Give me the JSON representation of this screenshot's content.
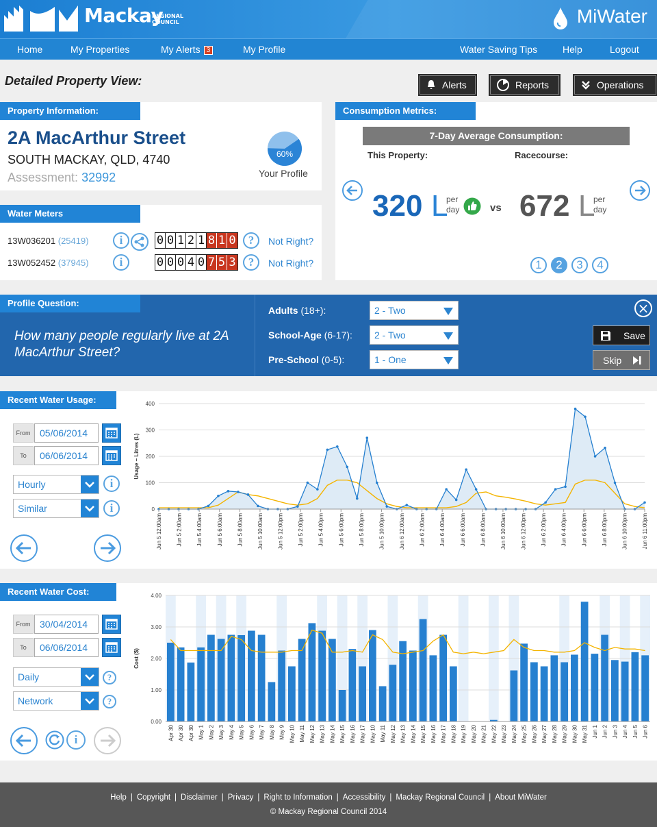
{
  "header": {
    "brand": "Mackay",
    "brand_sub_1": "REGIONAL",
    "brand_sub_2": "COUNCIL",
    "app_name": "MiWater"
  },
  "nav": {
    "home": "Home",
    "my_properties": "My Properties",
    "my_alerts": "My Alerts",
    "alerts_count": "3",
    "my_profile": "My Profile",
    "water_saving_tips": "Water Saving Tips",
    "help": "Help",
    "logout": "Logout"
  },
  "page_title": "Detailed Property View:",
  "top_buttons": {
    "alerts": "Alerts",
    "reports": "Reports",
    "operations": "Operations"
  },
  "property": {
    "tab": "Property Information:",
    "address": "2A MacArthur Street",
    "city": "SOUTH MACKAY, QLD, 4740",
    "assessment_label": "Assessment:",
    "assessment_number": "32992",
    "profile_percent": "60%",
    "profile_fraction": 0.6,
    "your_profile": "Your Profile"
  },
  "meters": {
    "tab": "Water Meters",
    "rows": [
      {
        "id": "13W036201",
        "sub": "(25419)",
        "digits_black": [
          "0",
          "0",
          "1",
          "2",
          "1"
        ],
        "digits_red": [
          "8",
          "1",
          "0"
        ],
        "not_right": "Not Right?"
      },
      {
        "id": "13W052452",
        "sub": "(37945)",
        "digits_black": [
          "0",
          "0",
          "0",
          "4",
          "0"
        ],
        "digits_red": [
          "7",
          "5",
          "3"
        ],
        "not_right": "Not Right?"
      }
    ]
  },
  "consumption": {
    "tab": "Consumption Metrics:",
    "header": "7-Day Average Consumption:",
    "this_property_label": "This Property:",
    "comparison_label": "Racecourse:",
    "this_value": "320",
    "comparison_value": "672",
    "unit": "L",
    "per": "per",
    "day": "day",
    "vs": "vs",
    "pages": [
      "1",
      "2",
      "3",
      "4"
    ],
    "active_page": "2"
  },
  "profile_question": {
    "tab": "Profile Question:",
    "question": "How many people regularly live at 2A MacArthur Street?",
    "fields": [
      {
        "label": "Adults",
        "range": "(18+):",
        "value": "2 - Two"
      },
      {
        "label": "School-Age",
        "range": "(6-17):",
        "value": "2 - Two"
      },
      {
        "label": "Pre-School",
        "range": "(0-5):",
        "value": "1 - One"
      }
    ],
    "save": "Save",
    "skip": "Skip"
  },
  "usage": {
    "tab": "Recent Water Usage:",
    "from_label": "From",
    "to_label": "To",
    "from_date": "05/06/2014",
    "to_date": "06/06/2014",
    "interval": "Hourly",
    "comparison": "Similar"
  },
  "cost": {
    "tab": "Recent Water Cost:",
    "from_label": "From",
    "to_label": "To",
    "from_date": "30/04/2014",
    "to_date": "06/06/2014",
    "interval": "Daily",
    "comparison": "Network"
  },
  "chart_data": [
    {
      "type": "area",
      "ylabel": "Usage – Litres (L)",
      "ylim": [
        0,
        400
      ],
      "yticks": [
        "0",
        "100",
        "200",
        "300",
        "400"
      ],
      "xtick_labels": [
        "Jun 5 12:00am",
        "Jun 5 2:00am",
        "Jun 5 4:00am",
        "Jun 5 6:00am",
        "Jun 5 8:00am",
        "Jun 5 10:00am",
        "Jun 5 12:00pm",
        "Jun 5 2:00pm",
        "Jun 5 4:00pm",
        "Jun 5 6:00pm",
        "Jun 5 8:00pm",
        "Jun 5 10:00pm",
        "Jun 6 12:00am",
        "Jun 6 2:00am",
        "Jun 6 4:00am",
        "Jun 6 6:00am",
        "Jun 6 8:00am",
        "Jun 6 10:00am",
        "Jun 6 12:00pm",
        "Jun 6 2:00pm",
        "Jun 6 4:00pm",
        "Jun 6 6:00pm",
        "Jun 6 8:00pm",
        "Jun 6 10:00pm",
        "Jun 6 11:00pm"
      ],
      "series": [
        {
          "values": [
            0,
            0,
            0,
            0,
            0,
            12,
            50,
            68,
            65,
            55,
            12,
            0,
            0,
            0,
            10,
            100,
            75,
            225,
            237,
            160,
            40,
            270,
            100,
            10,
            0,
            15,
            0,
            0,
            0,
            75,
            35,
            150,
            75,
            0,
            0,
            0,
            0,
            0,
            0,
            25,
            75,
            85,
            380,
            350,
            200,
            232,
            100,
            0,
            0,
            25
          ]
        },
        {
          "values": [
            5,
            5,
            5,
            5,
            5,
            5,
            15,
            40,
            65,
            55,
            50,
            40,
            30,
            20,
            15,
            20,
            40,
            90,
            110,
            110,
            100,
            70,
            40,
            20,
            10,
            5,
            5,
            5,
            5,
            5,
            10,
            25,
            60,
            65,
            50,
            45,
            38,
            30,
            20,
            15,
            20,
            25,
            95,
            110,
            110,
            100,
            60,
            20,
            10,
            5
          ]
        }
      ],
      "colors": [
        "#2680d0",
        "#f4b400"
      ]
    },
    {
      "type": "bar",
      "ylabel": "Cost ($)",
      "ylim": [
        0,
        4
      ],
      "yticks": [
        "0.00",
        "1.00",
        "2.00",
        "3.00",
        "4.00"
      ],
      "categories": [
        "Apr 30",
        "Apr 30",
        "Apr 30",
        "May 1",
        "May 2",
        "May 3",
        "May 4",
        "May 5",
        "May 6",
        "May 7",
        "May 8",
        "May 9",
        "May 10",
        "May 11",
        "May 12",
        "May 13",
        "May 14",
        "May 15",
        "May 16",
        "May 17",
        "May 10",
        "May 11",
        "May 12",
        "May 13",
        "May 14",
        "May 15",
        "May 16",
        "May 17",
        "May 18",
        "May 19",
        "May 20",
        "May 21",
        "May 22",
        "May 23",
        "May 24",
        "May 25",
        "May 26",
        "May 27",
        "May 28",
        "May 29",
        "May 30",
        "May 31",
        "Jun 1",
        "Jun 2",
        "Jun 3",
        "Jun 4",
        "Jun 5",
        "Jun 6"
      ],
      "series": [
        {
          "values": [
            2.5,
            2.35,
            1.87,
            2.35,
            2.75,
            2.62,
            2.75,
            2.74,
            2.88,
            2.75,
            1.25,
            2.25,
            1.75,
            2.62,
            3.12,
            2.88,
            2.62,
            1.0,
            2.3,
            1.75,
            2.9,
            1.12,
            1.8,
            2.55,
            2.25,
            3.25,
            2.1,
            2.75,
            1.75,
            0,
            0,
            0,
            0.05,
            0,
            1.62,
            2.47,
            1.88,
            1.75,
            2.1,
            1.88,
            2.12,
            3.8,
            2.15,
            2.75,
            1.95,
            1.9,
            2.2,
            2.1
          ]
        },
        {
          "values": [
            2.6,
            2.25,
            2.25,
            2.25,
            2.25,
            2.25,
            2.7,
            2.6,
            2.25,
            2.2,
            2.2,
            2.2,
            2.25,
            2.25,
            2.9,
            2.8,
            2.2,
            2.2,
            2.25,
            2.2,
            2.75,
            2.6,
            2.2,
            2.15,
            2.2,
            2.25,
            2.55,
            2.75,
            2.2,
            2.15,
            2.2,
            2.15,
            2.2,
            2.25,
            2.6,
            2.35,
            2.25,
            2.25,
            2.2,
            2.2,
            2.25,
            2.5,
            2.35,
            2.25,
            2.35,
            2.3,
            2.3,
            2.25
          ]
        }
      ],
      "colors": [
        "#2680d0",
        "#f4b400"
      ]
    }
  ],
  "footer": {
    "links": [
      "Help",
      "Copyright",
      "Disclaimer",
      "Privacy",
      "Right to Information",
      "Accessibility",
      "Mackay Regional Council",
      "About MiWater"
    ],
    "copyright": "© Mackay Regional Council 2014"
  }
}
